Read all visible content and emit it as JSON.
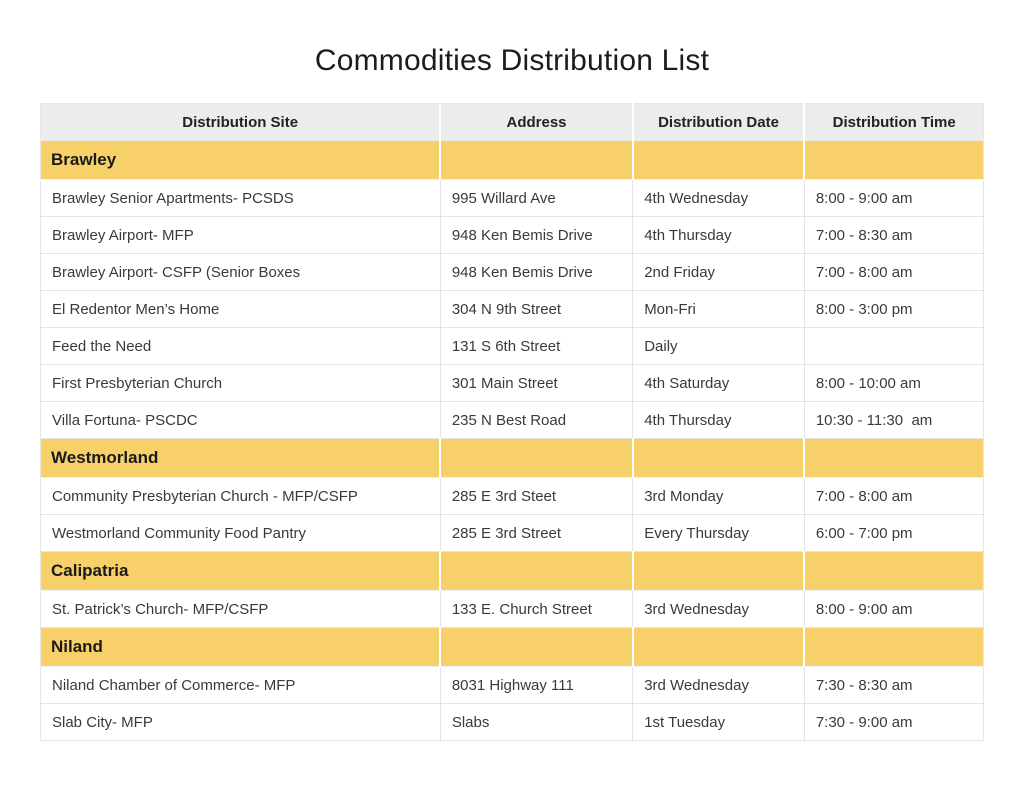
{
  "title": "Commodities Distribution List",
  "colors": {
    "section_bg": "#F8D06A",
    "header_bg": "#ECECEC",
    "row_line": "#E4E4E4"
  },
  "table": {
    "columns": [
      "Distribution Site",
      "Address",
      "Distribution Date",
      "Distribution Time"
    ],
    "sections": [
      {
        "name": "Brawley",
        "rows": [
          {
            "site": "Brawley Senior Apartments- PCSDS",
            "address": "995 Willard Ave",
            "date": "4th Wednesday",
            "time": "8:00 - 9:00 am"
          },
          {
            "site": "Brawley Airport- MFP",
            "address": "948 Ken Bemis Drive",
            "date": "4th Thursday",
            "time": "7:00 - 8:30 am"
          },
          {
            "site": "Brawley Airport- CSFP (Senior Boxes",
            "address": "948 Ken Bemis Drive",
            "date": "2nd Friday",
            "time": "7:00 - 8:00 am"
          },
          {
            "site": "El Redentor Men’s Home",
            "address": "304 N 9th Street",
            "date": "Mon-Fri",
            "time": "8:00 - 3:00 pm"
          },
          {
            "site": "Feed the Need",
            "address": "131 S 6th Street",
            "date": "Daily",
            "time": ""
          },
          {
            "site": "First Presbyterian Church",
            "address": "301 Main Street",
            "date": "4th Saturday",
            "time": "8:00 - 10:00 am"
          },
          {
            "site": "Villa Fortuna- PSCDC",
            "address": "235 N Best Road",
            "date": "4th Thursday",
            "time": "10:30 - 11:30  am"
          }
        ]
      },
      {
        "name": "Westmorland",
        "rows": [
          {
            "site": "Community Presbyterian Church - MFP/CSFP",
            "address": "285 E 3rd Steet",
            "date": "3rd Monday",
            "time": "7:00 - 8:00 am"
          },
          {
            "site": "Westmorland Community Food Pantry",
            "address": "285 E 3rd Street",
            "date": "Every Thursday",
            "time": "6:00 - 7:00 pm"
          }
        ]
      },
      {
        "name": "Calipatria",
        "rows": [
          {
            "site": "St. Patrick’s Church- MFP/CSFP",
            "address": "133 E. Church Street",
            "date": "3rd Wednesday",
            "time": "8:00 - 9:00 am"
          }
        ]
      },
      {
        "name": "Niland",
        "rows": [
          {
            "site": "Niland Chamber of Commerce- MFP",
            "address": "8031 Highway 111",
            "date": "3rd Wednesday",
            "time": "7:30 - 8:30 am"
          },
          {
            "site": "Slab City- MFP",
            "address": "Slabs",
            "date": "1st Tuesday",
            "time": "7:30 - 9:00 am"
          }
        ]
      }
    ]
  }
}
